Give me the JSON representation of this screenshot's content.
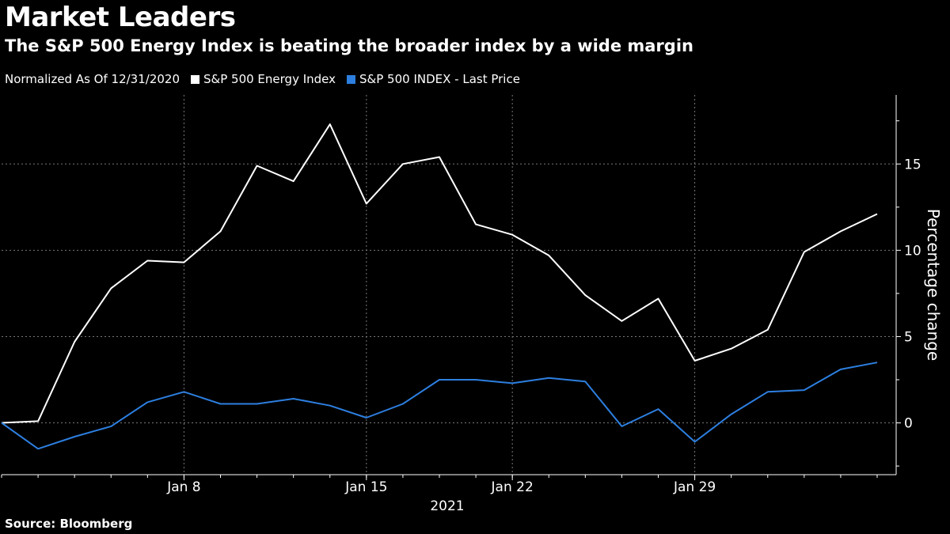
{
  "title": "Market Leaders",
  "subtitle": "The S&P 500 Energy Index is beating the broader index by a wide margin",
  "source": "Source: Bloomberg",
  "chart_data": {
    "type": "line",
    "legend_note": "Normalized As Of 12/31/2020",
    "legend_placement": "top-left",
    "grid": true,
    "x": [
      "2020-12-31",
      "2021-01-04",
      "2021-01-05",
      "2021-01-06",
      "2021-01-07",
      "2021-01-08",
      "2021-01-11",
      "2021-01-12",
      "2021-01-13",
      "2021-01-14",
      "2021-01-15",
      "2021-01-19",
      "2021-01-20",
      "2021-01-21",
      "2021-01-22",
      "2021-01-25",
      "2021-01-26",
      "2021-01-27",
      "2021-01-28",
      "2021-01-29",
      "2021-02-01",
      "2021-02-02",
      "2021-02-03",
      "2021-02-04",
      "2021-02-05"
    ],
    "series": [
      {
        "name": "S&P 500 Energy Index",
        "color": "#ffffff",
        "values": [
          0,
          0.1,
          4.7,
          7.8,
          9.4,
          9.3,
          11.1,
          14.9,
          14.0,
          17.3,
          12.7,
          15.0,
          15.4,
          11.5,
          10.9,
          9.7,
          7.4,
          5.9,
          7.2,
          3.6,
          4.3,
          5.4,
          9.9,
          11.1,
          12.1
        ]
      },
      {
        "name": "S&P 500 INDEX - Last Price",
        "color": "#2d7fe0",
        "values": [
          0,
          -1.5,
          -0.8,
          -0.2,
          1.2,
          1.8,
          1.1,
          1.1,
          1.4,
          1.0,
          0.3,
          1.1,
          2.5,
          2.5,
          2.3,
          2.6,
          2.4,
          -0.2,
          0.8,
          -1.1,
          0.5,
          1.8,
          1.9,
          3.1,
          3.5
        ]
      }
    ],
    "x_ticks": [
      {
        "label": "Jan 8",
        "x": "2021-01-08"
      },
      {
        "label": "Jan 15",
        "x": "2021-01-15"
      },
      {
        "label": "Jan 22",
        "x": "2021-01-22"
      },
      {
        "label": "Jan 29",
        "x": "2021-01-29"
      }
    ],
    "x_year_label": "2021",
    "y_ticks": [
      0,
      5,
      10,
      15
    ],
    "ylim": [
      -3,
      19
    ],
    "ylabel": "Percentage change",
    "xlabel": ""
  }
}
